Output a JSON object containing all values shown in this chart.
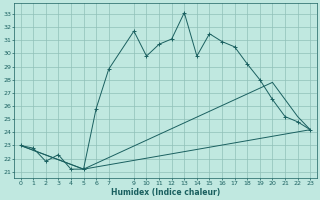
{
  "xlabel": "Humidex (Indice chaleur)",
  "bg_color": "#c0e8e0",
  "grid_color": "#90c0b8",
  "line_color": "#1a6060",
  "xlim": [
    -0.5,
    23.5
  ],
  "ylim": [
    20.5,
    33.8
  ],
  "xticks": [
    0,
    1,
    2,
    3,
    4,
    5,
    6,
    7,
    9,
    10,
    11,
    12,
    13,
    14,
    15,
    16,
    17,
    18,
    19,
    20,
    21,
    22,
    23
  ],
  "yticks": [
    21,
    22,
    23,
    24,
    25,
    26,
    27,
    28,
    29,
    30,
    31,
    32,
    33
  ],
  "line_main": {
    "x": [
      0,
      1,
      2,
      3,
      4,
      5,
      6,
      7,
      9,
      10,
      11,
      12,
      13,
      14,
      15,
      16,
      17,
      18,
      19,
      20,
      21,
      22,
      23
    ],
    "y": [
      23,
      22.8,
      21.8,
      22.3,
      21.2,
      21.2,
      25.8,
      28.8,
      31.7,
      29.8,
      30.7,
      31.1,
      33.1,
      29.8,
      31.5,
      30.9,
      30.5,
      29.2,
      28.0,
      26.5,
      25.2,
      24.8,
      24.2
    ]
  },
  "line_upper": {
    "x": [
      0,
      5,
      20,
      22,
      23
    ],
    "y": [
      23,
      21.2,
      27.8,
      25.2,
      24.2
    ]
  },
  "line_lower": {
    "x": [
      0,
      5,
      23
    ],
    "y": [
      23,
      21.2,
      24.2
    ]
  }
}
